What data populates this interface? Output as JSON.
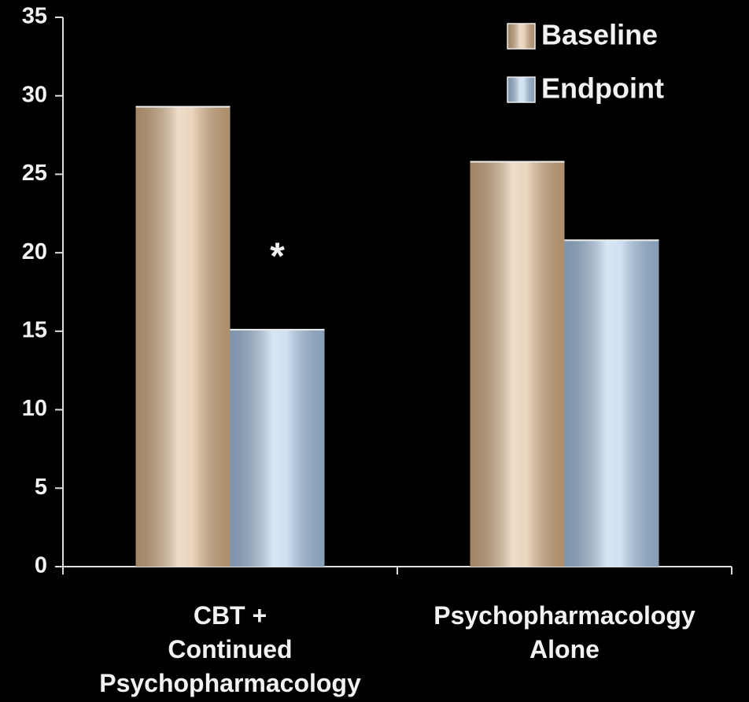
{
  "chart_data": {
    "type": "bar",
    "categories": [
      "CBT +\nContinued\nPsychopharmacology",
      "Psychopharmacology\nAlone"
    ],
    "series": [
      {
        "name": "Baseline",
        "color": "#d9b387",
        "values": [
          29.3,
          25.8
        ]
      },
      {
        "name": "Endpoint",
        "color": "#a9c7e6",
        "values": [
          15.1,
          20.8
        ]
      }
    ],
    "ylim": [
      0,
      35
    ],
    "yticks": [
      0,
      5,
      10,
      15,
      20,
      25,
      30,
      35
    ],
    "annotations": [
      {
        "text": "*",
        "category": 0,
        "series": 1
      }
    ],
    "legend": "top-right",
    "grid": false
  }
}
